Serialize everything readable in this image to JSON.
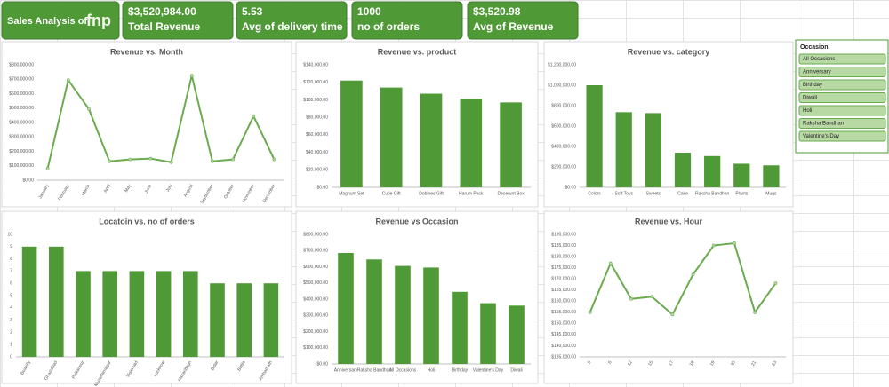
{
  "header": {
    "title": "Sales Analysis of",
    "logo": "fnp"
  },
  "kpis": [
    {
      "value": "$3,520,984.00",
      "label": "Total Revenue"
    },
    {
      "value": "5.53",
      "label": "Avg of delivery time"
    },
    {
      "value": "1000",
      "label": "no of orders"
    },
    {
      "value": "$3,520.98",
      "label": "Avg of Revenue"
    }
  ],
  "slicer": {
    "title": "Occasion",
    "items": [
      "All Occasions",
      "Anniversary",
      "Birthday",
      "Diwali",
      "Holi",
      "Raksha Bandhan",
      "Valentine's Day"
    ]
  },
  "chart_data": [
    {
      "type": "line",
      "title": "Revenue vs. Month",
      "categories": [
        "January",
        "February",
        "March",
        "April",
        "May",
        "June",
        "July",
        "August",
        "September",
        "October",
        "November",
        "December"
      ],
      "series": [
        {
          "name": "Revenue",
          "color": "#6aab4f",
          "values": [
            81000,
            694000,
            494000,
            131000,
            144000,
            150000,
            125000,
            725000,
            131000,
            144000,
            444000,
            144000
          ]
        }
      ],
      "ylim": [
        0,
        800000
      ],
      "yticks": [
        {
          "value": 0,
          "label": "$0.00"
        },
        {
          "value": 100000,
          "label": "$100,000.00"
        },
        {
          "value": 200000,
          "label": "$200,000.00"
        },
        {
          "value": 300000,
          "label": "$300,000.00"
        },
        {
          "value": 400000,
          "label": "$400,000.00"
        },
        {
          "value": 500000,
          "label": "$500,000.00"
        },
        {
          "value": 600000,
          "label": "$600,000.00"
        },
        {
          "value": 700000,
          "label": "$700,000.00"
        },
        {
          "value": 800000,
          "label": "$800,000.00"
        }
      ]
    },
    {
      "type": "bar",
      "title": "Revenue vs. product",
      "categories": [
        "Magnum Set",
        "Cutie Gift",
        "Dobines Gift",
        "Harum Pack",
        "Deserunt Box"
      ],
      "series": [
        {
          "name": "Revenue",
          "color": "#4f9a37",
          "values": [
            122000,
            114000,
            107000,
            101000,
            97000
          ]
        }
      ],
      "ylim": [
        0,
        140000
      ],
      "yticks": [
        {
          "value": 0,
          "label": "$0.00"
        },
        {
          "value": 20000,
          "label": "$20,000.00"
        },
        {
          "value": 40000,
          "label": "$40,000.00"
        },
        {
          "value": 60000,
          "label": "$60,000.00"
        },
        {
          "value": 80000,
          "label": "$80,000.00"
        },
        {
          "value": 100000,
          "label": "$100,000.00"
        },
        {
          "value": 120000,
          "label": "$120,000.00"
        },
        {
          "value": 140000,
          "label": "$140,000.00"
        }
      ]
    },
    {
      "type": "bar",
      "title": "Revenue vs. category",
      "categories": [
        "Colors",
        "Soft Toys",
        "Sweets",
        "Cake",
        "Raksha Bandhan",
        "Plants",
        "Mugs"
      ],
      "series": [
        {
          "name": "Revenue",
          "color": "#4f9a37",
          "values": [
            1000000,
            736000,
            727000,
            339000,
            306000,
            231000,
            215000
          ]
        }
      ],
      "ylim": [
        0,
        1200000
      ],
      "yticks": [
        {
          "value": 0,
          "label": "$0.00"
        },
        {
          "value": 200000,
          "label": "$200,000.00"
        },
        {
          "value": 400000,
          "label": "$400,000.00"
        },
        {
          "value": 600000,
          "label": "$600,000.00"
        },
        {
          "value": 800000,
          "label": "$800,000.00"
        },
        {
          "value": 1000000,
          "label": "$1,000,000.00"
        },
        {
          "value": 1200000,
          "label": "$1,200,000.00"
        }
      ]
    },
    {
      "type": "bar",
      "title": "Locatoin vs. no of orders",
      "categories": [
        "Bowrilly",
        "Ghaziabad",
        "Pulkanpur",
        "Muzaffarnagar",
        "Visiernad",
        "Lucknow",
        "Hazaribagh",
        "Bidar",
        "Ballia",
        "Ambarnath"
      ],
      "series": [
        {
          "name": "no of orders",
          "color": "#4f9a37",
          "values": [
            9,
            9,
            7,
            7,
            7,
            7,
            7,
            6,
            6,
            6
          ]
        }
      ],
      "ylim": [
        0,
        10
      ],
      "yticks": [
        0,
        1,
        2,
        3,
        4,
        5,
        6,
        7,
        8,
        9,
        10
      ]
    },
    {
      "type": "bar",
      "title": "Revenue vs Occasion",
      "categories": [
        "Anniversary",
        "Raksha Bandhan",
        "All Occasions",
        "Holi",
        "Birthday",
        "Valentine's Day",
        "Diwali"
      ],
      "series": [
        {
          "name": "Revenue",
          "color": "#4f9a37",
          "values": [
            685000,
            645000,
            605000,
            595000,
            445000,
            375000,
            360000
          ]
        }
      ],
      "ylim": [
        0,
        800000
      ],
      "yticks": [
        {
          "value": 0,
          "label": "$0.00"
        },
        {
          "value": 100000,
          "label": "$100,000.00"
        },
        {
          "value": 200000,
          "label": "$200,000.00"
        },
        {
          "value": 300000,
          "label": "$300,000.00"
        },
        {
          "value": 400000,
          "label": "$400,000.00"
        },
        {
          "value": 500000,
          "label": "$500,000.00"
        },
        {
          "value": 600000,
          "label": "$600,000.00"
        },
        {
          "value": 700000,
          "label": "$700,000.00"
        },
        {
          "value": 800000,
          "label": "$800,000.00"
        }
      ]
    },
    {
      "type": "line",
      "title": "Revenue vs. Hour",
      "categories": [
        "5",
        "6",
        "12",
        "15",
        "17",
        "18",
        "19",
        "20",
        "21",
        "23"
      ],
      "series": [
        {
          "name": "Revenue",
          "color": "#6aab4f",
          "values": [
            155000,
            177000,
            161000,
            162000,
            154000,
            172000,
            185000,
            186000,
            155000,
            168000
          ]
        }
      ],
      "ylim": [
        135000,
        190000
      ],
      "yticks": [
        {
          "value": 135000,
          "label": "$135,000.00"
        },
        {
          "value": 140000,
          "label": "$140,000.00"
        },
        {
          "value": 145000,
          "label": "$145,000.00"
        },
        {
          "value": 150000,
          "label": "$150,000.00"
        },
        {
          "value": 155000,
          "label": "$155,000.00"
        },
        {
          "value": 160000,
          "label": "$160,000.00"
        },
        {
          "value": 165000,
          "label": "$165,000.00"
        },
        {
          "value": 170000,
          "label": "$170,000.00"
        },
        {
          "value": 175000,
          "label": "$175,000.00"
        },
        {
          "value": 180000,
          "label": "$180,000.00"
        },
        {
          "value": 185000,
          "label": "$185,000.00"
        },
        {
          "value": 190000,
          "label": "$190,000.00"
        }
      ]
    }
  ]
}
